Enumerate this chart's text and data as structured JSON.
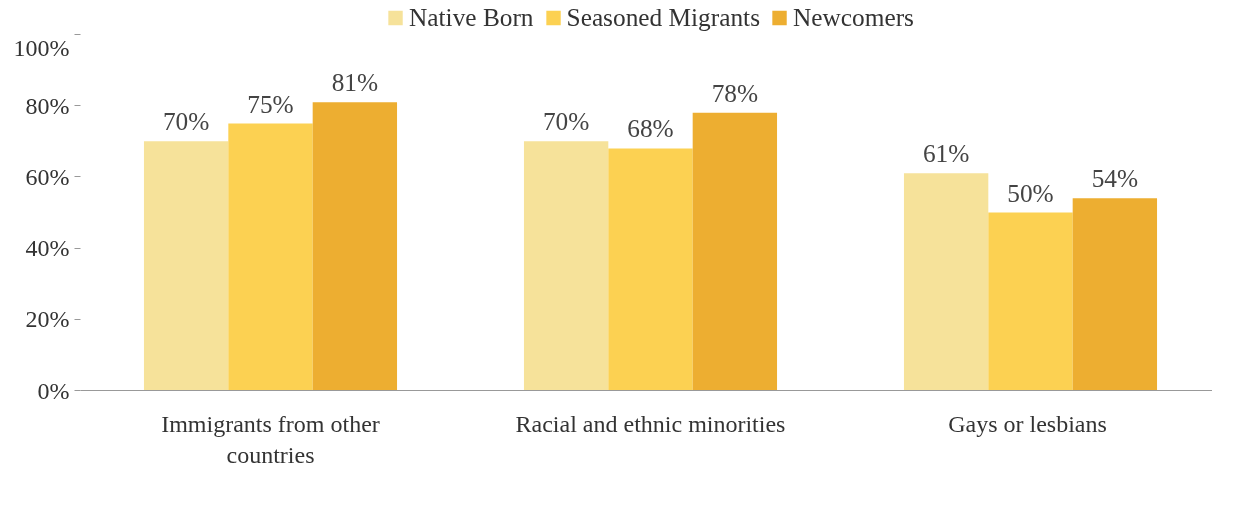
{
  "chart_data": {
    "type": "bar",
    "categories": [
      "Immigrants from other countries",
      "Racial and ethnic minorities",
      "Gays or  lesbians"
    ],
    "series": [
      {
        "name": "Native Born",
        "color": "#f6e29a",
        "values": [
          70,
          70,
          61
        ],
        "value_labels": [
          "70%",
          "70%",
          "61%"
        ]
      },
      {
        "name": "Seasoned Migrants",
        "color": "#fcd152",
        "values": [
          75,
          68,
          50
        ],
        "value_labels": [
          "75%",
          "68%",
          "50%"
        ]
      },
      {
        "name": "Newcomers",
        "color": "#edae31",
        "values": [
          81,
          78,
          54
        ],
        "value_labels": [
          "81%",
          "78%",
          "54%"
        ]
      }
    ],
    "ylim": [
      0,
      100
    ],
    "yticks": [
      {
        "value": 0,
        "label": "0%"
      },
      {
        "value": 20,
        "label": "20%"
      },
      {
        "value": 40,
        "label": "40%"
      },
      {
        "value": 60,
        "label": "60%"
      },
      {
        "value": 80,
        "label": "80%"
      },
      {
        "value": 100,
        "label": "100%"
      }
    ],
    "grid": false,
    "legend": "top"
  }
}
